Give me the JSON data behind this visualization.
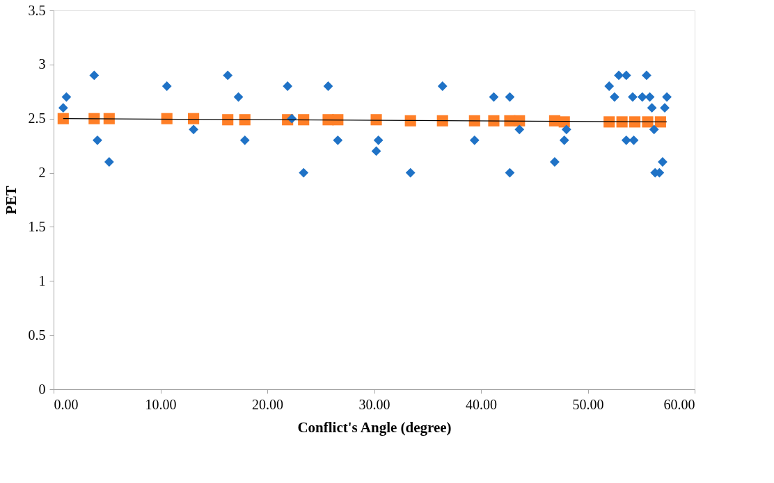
{
  "chart_data": {
    "type": "scatter",
    "xlabel": "Conflict's Angle (degree)",
    "ylabel": "PET",
    "xlim": [
      0,
      60
    ],
    "ylim": [
      0,
      3.5
    ],
    "xticks": [
      {
        "value": 0,
        "label": "0.00"
      },
      {
        "value": 10,
        "label": "10.00"
      },
      {
        "value": 20,
        "label": "20.00"
      },
      {
        "value": 30,
        "label": "30.00"
      },
      {
        "value": 40,
        "label": "40.00"
      },
      {
        "value": 50,
        "label": "50.00"
      },
      {
        "value": 60,
        "label": "60.00"
      }
    ],
    "yticks": [
      0,
      0.5,
      1,
      1.5,
      2,
      2.5,
      3,
      3.5
    ],
    "grid": false,
    "series": [
      {
        "marker": "diamond",
        "color": "#1f72c6",
        "x": [
          0.9,
          1.2,
          3.8,
          4.1,
          5.2,
          10.6,
          13.1,
          16.3,
          17.3,
          17.9,
          21.9,
          22.3,
          23.4,
          25.7,
          26.6,
          30.2,
          30.4,
          33.4,
          36.4,
          39.4,
          41.2,
          42.7,
          42.7,
          43.6,
          46.9,
          47.8,
          48.0,
          52.0,
          52.5,
          52.9,
          53.6,
          53.6,
          54.2,
          54.3,
          55.1,
          55.5,
          55.8,
          56.0,
          56.2,
          56.3,
          56.7,
          57.0,
          57.2,
          57.4
        ],
        "values": [
          2.6,
          2.7,
          2.9,
          2.3,
          2.1,
          2.8,
          2.4,
          2.9,
          2.7,
          2.3,
          2.8,
          2.5,
          2.0,
          2.8,
          2.3,
          2.2,
          2.3,
          2.0,
          2.8,
          2.3,
          2.7,
          2.7,
          2.0,
          2.4,
          2.1,
          2.3,
          2.4,
          2.8,
          2.7,
          2.9,
          2.9,
          2.3,
          2.7,
          2.3,
          2.7,
          2.9,
          2.7,
          2.6,
          2.4,
          2.0,
          2.0,
          2.1,
          2.6,
          2.7
        ]
      },
      {
        "marker": "square",
        "color": "#ff7f27",
        "x": [
          0.9,
          3.8,
          5.2,
          10.6,
          13.1,
          16.3,
          17.9,
          21.9,
          23.4,
          25.7,
          26.6,
          30.2,
          33.4,
          36.4,
          39.4,
          41.2,
          42.7,
          43.6,
          46.9,
          47.8,
          52.0,
          53.2,
          54.4,
          55.6,
          56.8
        ],
        "values": [
          2.5,
          2.5,
          2.5,
          2.5,
          2.5,
          2.49,
          2.49,
          2.49,
          2.49,
          2.49,
          2.49,
          2.49,
          2.48,
          2.48,
          2.48,
          2.48,
          2.48,
          2.48,
          2.48,
          2.47,
          2.47,
          2.47,
          2.47,
          2.47,
          2.47
        ]
      },
      {
        "type": "line",
        "marker": "none",
        "line_style": "solid",
        "color": "#000000",
        "x": [
          0.9,
          57.4
        ],
        "values": [
          2.5,
          2.47
        ]
      }
    ]
  }
}
